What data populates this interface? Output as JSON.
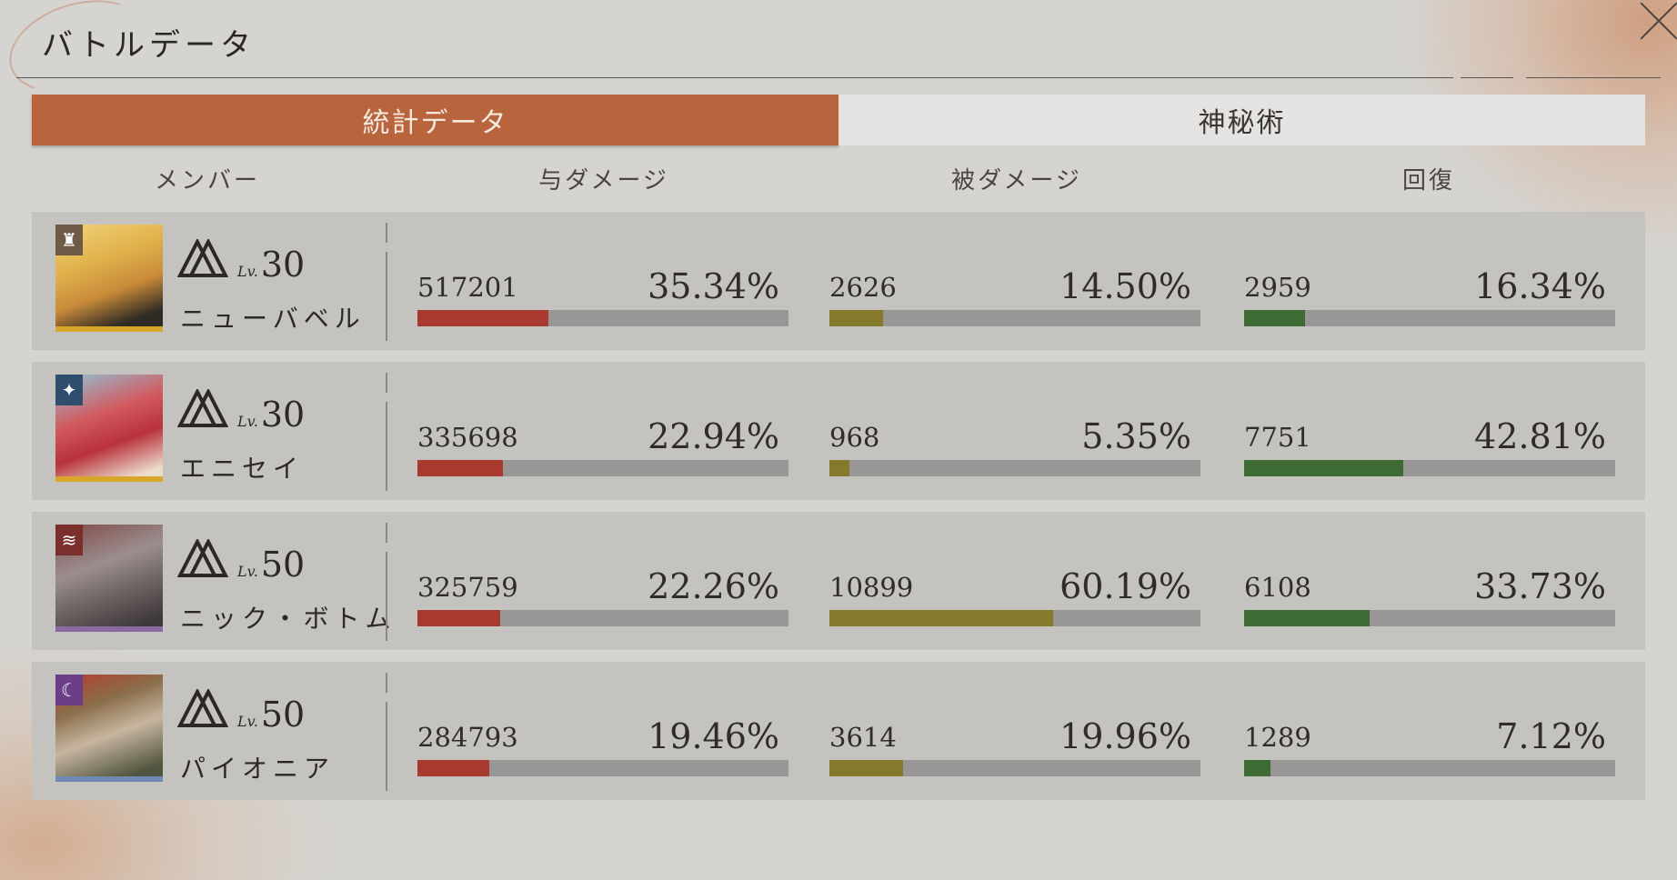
{
  "window": {
    "title": "バトルデータ"
  },
  "tabs": [
    {
      "label": "統計データ",
      "active": true
    },
    {
      "label": "神秘術",
      "active": false
    }
  ],
  "columns": {
    "member": "メンバー",
    "dealt": "与ダメージ",
    "taken": "被ダメージ",
    "heal": "回復"
  },
  "colors": {
    "dealt": "#a8392f",
    "taken": "#857a2c",
    "heal": "#3e6b34",
    "accent": "#b8653d"
  },
  "members": [
    {
      "name": "ニューバベル",
      "lv_label": "Lv.",
      "level": "30",
      "emblem_icon": "tower-icon",
      "emblem_color": "#6e5a46",
      "stripe_color": "#d7a62b",
      "dealt": {
        "value": "517201",
        "pct_label": "35.34%",
        "pct": 35.34
      },
      "taken": {
        "value": "2626",
        "pct_label": "14.50%",
        "pct": 14.5
      },
      "heal": {
        "value": "2959",
        "pct_label": "16.34%",
        "pct": 16.34
      }
    },
    {
      "name": "エニセイ",
      "lv_label": "Lv.",
      "level": "30",
      "emblem_icon": "star-spark-icon",
      "emblem_color": "#2f4d6c",
      "stripe_color": "#d7a62b",
      "dealt": {
        "value": "335698",
        "pct_label": "22.94%",
        "pct": 22.94
      },
      "taken": {
        "value": "968",
        "pct_label": "5.35%",
        "pct": 5.35
      },
      "heal": {
        "value": "7751",
        "pct_label": "42.81%",
        "pct": 42.81
      }
    },
    {
      "name": "ニック・ボトム",
      "lv_label": "Lv.",
      "level": "50",
      "emblem_icon": "claw-icon",
      "emblem_color": "#7a2f2c",
      "stripe_color": "#8a6aa3",
      "dealt": {
        "value": "325759",
        "pct_label": "22.26%",
        "pct": 22.26
      },
      "taken": {
        "value": "10899",
        "pct_label": "60.19%",
        "pct": 60.19
      },
      "heal": {
        "value": "6108",
        "pct_label": "33.73%",
        "pct": 33.73
      }
    },
    {
      "name": "パイオニア",
      "lv_label": "Lv.",
      "level": "50",
      "emblem_icon": "moon-icon",
      "emblem_color": "#6a3f86",
      "stripe_color": "#6f8bb3",
      "dealt": {
        "value": "284793",
        "pct_label": "19.46%",
        "pct": 19.46
      },
      "taken": {
        "value": "3614",
        "pct_label": "19.96%",
        "pct": 19.96
      },
      "heal": {
        "value": "1289",
        "pct_label": "7.12%",
        "pct": 7.12
      }
    }
  ]
}
